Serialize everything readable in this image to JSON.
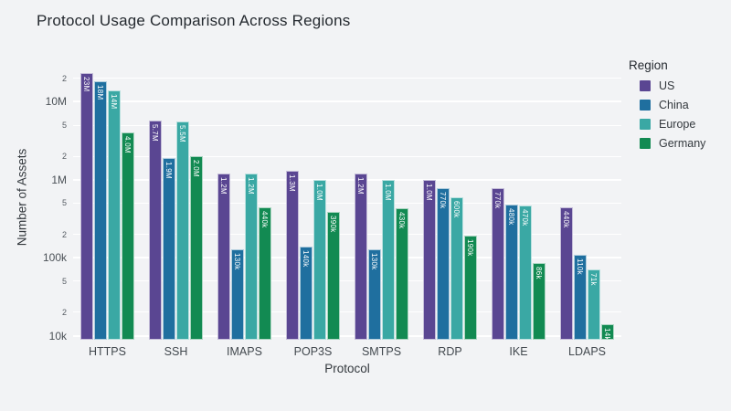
{
  "title": "Protocol Usage Comparison Across Regions",
  "colors": {
    "background": "#f2f3f5",
    "gridline": "#ffffff",
    "us": "#5a4692",
    "china": "#1f6f9f",
    "europe": "#3aa8a4",
    "germany": "#128a52"
  },
  "chart_data": {
    "type": "bar",
    "title": "Protocol Usage Comparison Across Regions",
    "xlabel": "Protocol",
    "ylabel": "Number of Assets",
    "yscale": "log",
    "ylim": [
      8912,
      39800000
    ],
    "grid": true,
    "categories": [
      "HTTPS",
      "SSH",
      "IMAPS",
      "POP3S",
      "SMTPS",
      "RDP",
      "IKE",
      "LDAPS"
    ],
    "series": [
      {
        "name": "US",
        "color": "#5a4692",
        "values": [
          23000000,
          5700000,
          1200000,
          1300000,
          1200000,
          1000000,
          770000,
          440000
        ],
        "labels": [
          "23M",
          "5.7M",
          "1.2M",
          "1.3M",
          "1.2M",
          "1.0M",
          "770k",
          "440k"
        ]
      },
      {
        "name": "China",
        "color": "#1f6f9f",
        "values": [
          18000000,
          1900000,
          130000,
          140000,
          130000,
          770000,
          480000,
          110000
        ],
        "labels": [
          "18M",
          "1.9M",
          "130k",
          "140k",
          "130k",
          "770k",
          "480k",
          "110k"
        ]
      },
      {
        "name": "Europe",
        "color": "#3aa8a4",
        "values": [
          14000000,
          5500000,
          1200000,
          1000000,
          1000000,
          600000,
          470000,
          71000
        ],
        "labels": [
          "14M",
          "5.5M",
          "1.2M",
          "1.0M",
          "1.0M",
          "600k",
          "470k",
          "71k"
        ]
      },
      {
        "name": "Germany",
        "color": "#128a52",
        "values": [
          4000000,
          2000000,
          440000,
          390000,
          430000,
          190000,
          86000,
          14000
        ],
        "labels": [
          "4.0M",
          "2.0M",
          "440k",
          "390k",
          "430k",
          "190k",
          "86k",
          "14k"
        ]
      }
    ],
    "yticks": [
      {
        "label": "10k",
        "value": 10000,
        "major": true
      },
      {
        "label": "2",
        "value": 20000,
        "major": false
      },
      {
        "label": "5",
        "value": 50000,
        "major": false
      },
      {
        "label": "100k",
        "value": 100000,
        "major": true
      },
      {
        "label": "2",
        "value": 200000,
        "major": false
      },
      {
        "label": "5",
        "value": 500000,
        "major": false
      },
      {
        "label": "1M",
        "value": 1000000,
        "major": true
      },
      {
        "label": "2",
        "value": 2000000,
        "major": false
      },
      {
        "label": "5",
        "value": 5000000,
        "major": false
      },
      {
        "label": "10M",
        "value": 10000000,
        "major": true
      },
      {
        "label": "2",
        "value": 20000000,
        "major": false
      }
    ],
    "legend": {
      "title": "Region",
      "position": "right"
    }
  }
}
